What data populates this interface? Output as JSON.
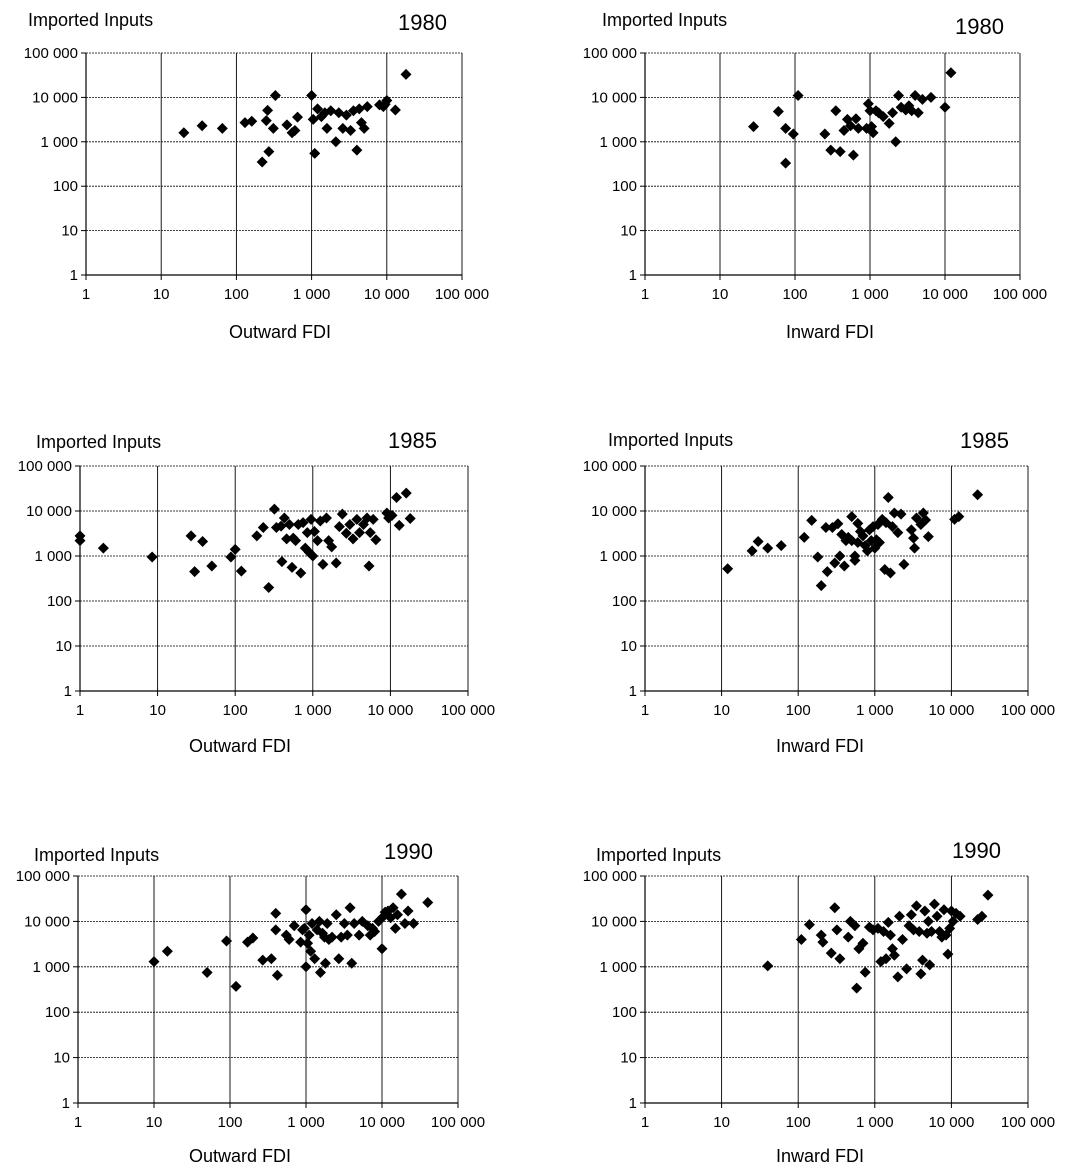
{
  "chart_data": [
    {
      "type": "scatter",
      "scale": "log-log",
      "year": "1980",
      "ylabel": "Imported Inputs",
      "xlabel": "Outward FDI",
      "xlim": [
        1,
        100000
      ],
      "ylim": [
        1,
        100000
      ],
      "xticks": [
        "1",
        "10",
        "100",
        "1 000",
        "10 000",
        "100 000"
      ],
      "yticks": [
        "1",
        "10",
        "100",
        "1 000",
        "10 000",
        "100 000"
      ],
      "grid": true,
      "marker": "diamond",
      "marker_color": "#000000",
      "points": [
        [
          20,
          1600
        ],
        [
          35,
          2300
        ],
        [
          65,
          2000
        ],
        [
          130,
          2700
        ],
        [
          160,
          2900
        ],
        [
          220,
          350
        ],
        [
          250,
          3000
        ],
        [
          260,
          5100
        ],
        [
          270,
          600
        ],
        [
          310,
          2000
        ],
        [
          330,
          11000
        ],
        [
          470,
          2400
        ],
        [
          550,
          1600
        ],
        [
          600,
          1800
        ],
        [
          650,
          3600
        ],
        [
          1000,
          11000
        ],
        [
          1050,
          3200
        ],
        [
          1100,
          550
        ],
        [
          1200,
          5500
        ],
        [
          1350,
          3700
        ],
        [
          1500,
          4500
        ],
        [
          1600,
          2000
        ],
        [
          1800,
          5000
        ],
        [
          2100,
          1000
        ],
        [
          2300,
          4500
        ],
        [
          2600,
          2000
        ],
        [
          2900,
          4000
        ],
        [
          3300,
          1800
        ],
        [
          3600,
          5000
        ],
        [
          4000,
          650
        ],
        [
          4300,
          5500
        ],
        [
          4600,
          2700
        ],
        [
          5000,
          2000
        ],
        [
          5500,
          6200
        ],
        [
          8000,
          6800
        ],
        [
          9000,
          6200
        ],
        [
          9500,
          7000
        ],
        [
          10000,
          8500
        ],
        [
          13000,
          5200
        ],
        [
          18000,
          33000
        ]
      ]
    },
    {
      "type": "scatter",
      "scale": "log-log",
      "year": "1980",
      "ylabel": "Imported Inputs",
      "xlabel": "Inward FDI",
      "xlim": [
        1,
        100000
      ],
      "ylim": [
        1,
        100000
      ],
      "xticks": [
        "1",
        "10",
        "100",
        "1 000",
        "10 000",
        "100 000"
      ],
      "yticks": [
        "1",
        "10",
        "100",
        "1 000",
        "10 000",
        "100 000"
      ],
      "grid": true,
      "marker": "diamond",
      "marker_color": "#000000",
      "points": [
        [
          28,
          2200
        ],
        [
          60,
          4800
        ],
        [
          75,
          2000
        ],
        [
          75,
          330
        ],
        [
          95,
          1500
        ],
        [
          110,
          11000
        ],
        [
          250,
          1500
        ],
        [
          300,
          650
        ],
        [
          350,
          5000
        ],
        [
          400,
          600
        ],
        [
          450,
          1800
        ],
        [
          500,
          3200
        ],
        [
          550,
          2300
        ],
        [
          600,
          500
        ],
        [
          650,
          3300
        ],
        [
          700,
          2000
        ],
        [
          900,
          2000
        ],
        [
          950,
          7200
        ],
        [
          1000,
          5000
        ],
        [
          1050,
          2200
        ],
        [
          1100,
          1600
        ],
        [
          1200,
          5000
        ],
        [
          1300,
          4500
        ],
        [
          1500,
          3700
        ],
        [
          1800,
          2600
        ],
        [
          2000,
          4500
        ],
        [
          2200,
          1000
        ],
        [
          2400,
          11000
        ],
        [
          2600,
          6000
        ],
        [
          3000,
          5200
        ],
        [
          3300,
          6500
        ],
        [
          3600,
          5000
        ],
        [
          4000,
          11000
        ],
        [
          4400,
          4500
        ],
        [
          5000,
          9000
        ],
        [
          6500,
          10000
        ],
        [
          10000,
          6000
        ],
        [
          12000,
          36000
        ]
      ]
    },
    {
      "type": "scatter",
      "scale": "log-log",
      "year": "1985",
      "ylabel": "Imported Inputs",
      "xlabel": "Outward FDI",
      "xlim": [
        1,
        100000
      ],
      "ylim": [
        1,
        100000
      ],
      "xticks": [
        "1",
        "10",
        "100",
        "1 000",
        "10 000",
        "100 000"
      ],
      "yticks": [
        "1",
        "10",
        "100",
        "1 000",
        "10 000",
        "100 000"
      ],
      "grid": true,
      "marker": "diamond",
      "marker_color": "#000000",
      "points": [
        [
          1,
          2800
        ],
        [
          1,
          2200
        ],
        [
          2,
          1500
        ],
        [
          8.5,
          950
        ],
        [
          27,
          2800
        ],
        [
          30,
          450
        ],
        [
          38,
          2100
        ],
        [
          50,
          600
        ],
        [
          88,
          950
        ],
        [
          100,
          1400
        ],
        [
          120,
          460
        ],
        [
          190,
          2800
        ],
        [
          230,
          4300
        ],
        [
          270,
          200
        ],
        [
          320,
          11000
        ],
        [
          340,
          4300
        ],
        [
          390,
          4600
        ],
        [
          400,
          750
        ],
        [
          430,
          7000
        ],
        [
          460,
          2400
        ],
        [
          500,
          5000
        ],
        [
          540,
          560
        ],
        [
          560,
          2500
        ],
        [
          600,
          2200
        ],
        [
          650,
          5000
        ],
        [
          700,
          420
        ],
        [
          750,
          5500
        ],
        [
          800,
          1500
        ],
        [
          850,
          3300
        ],
        [
          900,
          1200
        ],
        [
          950,
          6500
        ],
        [
          1000,
          1000
        ],
        [
          1050,
          3500
        ],
        [
          1150,
          2200
        ],
        [
          1250,
          6000
        ],
        [
          1350,
          650
        ],
        [
          1500,
          7000
        ],
        [
          1600,
          2200
        ],
        [
          1750,
          1600
        ],
        [
          2000,
          700
        ],
        [
          2200,
          4500
        ],
        [
          2400,
          8500
        ],
        [
          2700,
          3200
        ],
        [
          3000,
          5000
        ],
        [
          3300,
          2400
        ],
        [
          3700,
          6500
        ],
        [
          4000,
          3300
        ],
        [
          4500,
          5000
        ],
        [
          5000,
          7000
        ],
        [
          5300,
          600
        ],
        [
          5500,
          3300
        ],
        [
          6000,
          6500
        ],
        [
          6500,
          2300
        ],
        [
          9000,
          9000
        ],
        [
          9500,
          7000
        ],
        [
          10500,
          8000
        ],
        [
          12000,
          20000
        ],
        [
          13000,
          4800
        ],
        [
          16000,
          25000
        ],
        [
          18000,
          6800
        ]
      ]
    },
    {
      "type": "scatter",
      "scale": "log-log",
      "year": "1985",
      "ylabel": "Imported Inputs",
      "xlabel": "Inward FDI",
      "xlim": [
        1,
        100000
      ],
      "ylim": [
        1,
        100000
      ],
      "xticks": [
        "1",
        "10",
        "100",
        "1 000",
        "10 000",
        "100 000"
      ],
      "yticks": [
        "1",
        "10",
        "100",
        "1 000",
        "10 000",
        "100 000"
      ],
      "grid": true,
      "marker": "diamond",
      "marker_color": "#000000",
      "points": [
        [
          12,
          520
        ],
        [
          25,
          1300
        ],
        [
          30,
          2100
        ],
        [
          40,
          1500
        ],
        [
          60,
          1700
        ],
        [
          120,
          2600
        ],
        [
          150,
          6200
        ],
        [
          180,
          950
        ],
        [
          200,
          220
        ],
        [
          230,
          4300
        ],
        [
          240,
          450
        ],
        [
          280,
          4300
        ],
        [
          300,
          700
        ],
        [
          330,
          5200
        ],
        [
          350,
          1000
        ],
        [
          370,
          3000
        ],
        [
          400,
          600
        ],
        [
          420,
          2200
        ],
        [
          450,
          2600
        ],
        [
          500,
          7500
        ],
        [
          500,
          2200
        ],
        [
          550,
          1000
        ],
        [
          550,
          800
        ],
        [
          600,
          5300
        ],
        [
          600,
          2000
        ],
        [
          650,
          3500
        ],
        [
          700,
          2800
        ],
        [
          750,
          1700
        ],
        [
          800,
          1300
        ],
        [
          850,
          3800
        ],
        [
          900,
          2200
        ],
        [
          950,
          4500
        ],
        [
          1000,
          1500
        ],
        [
          1050,
          2300
        ],
        [
          1100,
          5000
        ],
        [
          1150,
          2000
        ],
        [
          1250,
          6500
        ],
        [
          1350,
          500
        ],
        [
          1400,
          5500
        ],
        [
          1500,
          20000
        ],
        [
          1600,
          420
        ],
        [
          1700,
          4500
        ],
        [
          1800,
          9000
        ],
        [
          2000,
          3300
        ],
        [
          2200,
          8500
        ],
        [
          2400,
          650
        ],
        [
          3000,
          3800
        ],
        [
          3200,
          2500
        ],
        [
          3300,
          1500
        ],
        [
          3500,
          7000
        ],
        [
          4000,
          5000
        ],
        [
          4300,
          9000
        ],
        [
          4600,
          6300
        ],
        [
          5000,
          2700
        ],
        [
          11000,
          6500
        ],
        [
          12500,
          7500
        ],
        [
          22000,
          23000
        ]
      ]
    },
    {
      "type": "scatter",
      "scale": "log-log",
      "year": "1990",
      "ylabel": "Imported Inputs",
      "xlabel": "Outward FDI",
      "xlim": [
        1,
        100000
      ],
      "ylim": [
        1,
        100000
      ],
      "xticks": [
        "1",
        "10",
        "100",
        "1 000",
        "10 000",
        "100 000"
      ],
      "yticks": [
        "1",
        "10",
        "100",
        "1 000",
        "10 000",
        "100 000"
      ],
      "grid": true,
      "marker": "diamond",
      "marker_color": "#000000",
      "points": [
        [
          10,
          1300
        ],
        [
          15,
          2200
        ],
        [
          50,
          750
        ],
        [
          90,
          3700
        ],
        [
          120,
          370
        ],
        [
          170,
          3500
        ],
        [
          200,
          4300
        ],
        [
          270,
          1400
        ],
        [
          350,
          1500
        ],
        [
          400,
          15000
        ],
        [
          400,
          6500
        ],
        [
          420,
          650
        ],
        [
          550,
          5000
        ],
        [
          600,
          4000
        ],
        [
          700,
          8000
        ],
        [
          850,
          3500
        ],
        [
          900,
          6500
        ],
        [
          950,
          7000
        ],
        [
          1000,
          18000
        ],
        [
          1000,
          1000
        ],
        [
          1050,
          3300
        ],
        [
          1100,
          5000
        ],
        [
          1150,
          2200
        ],
        [
          1200,
          9000
        ],
        [
          1300,
          1500
        ],
        [
          1400,
          6500
        ],
        [
          1500,
          10000
        ],
        [
          1550,
          750
        ],
        [
          1650,
          5500
        ],
        [
          1750,
          4500
        ],
        [
          1800,
          1200
        ],
        [
          1900,
          9000
        ],
        [
          2000,
          4000
        ],
        [
          2200,
          4500
        ],
        [
          2500,
          14000
        ],
        [
          2700,
          1500
        ],
        [
          2900,
          4500
        ],
        [
          3200,
          9000
        ],
        [
          3500,
          5000
        ],
        [
          3800,
          20000
        ],
        [
          4000,
          1200
        ],
        [
          4300,
          9000
        ],
        [
          5000,
          5000
        ],
        [
          5500,
          10000
        ],
        [
          6500,
          8000
        ],
        [
          7000,
          5000
        ],
        [
          7500,
          7000
        ],
        [
          8000,
          6000
        ],
        [
          9000,
          10000
        ],
        [
          10000,
          2500
        ],
        [
          10500,
          13000
        ],
        [
          11000,
          16000
        ],
        [
          12000,
          17000
        ],
        [
          13000,
          12000
        ],
        [
          14000,
          20000
        ],
        [
          15000,
          7000
        ],
        [
          16000,
          14000
        ],
        [
          18000,
          40000
        ],
        [
          20000,
          9000
        ],
        [
          22000,
          17000
        ],
        [
          26000,
          9000
        ],
        [
          40000,
          26000
        ]
      ]
    },
    {
      "type": "scatter",
      "scale": "log-log",
      "year": "1990",
      "ylabel": "Imported Inputs",
      "xlabel": "Inward FDI",
      "xlim": [
        1,
        100000
      ],
      "ylim": [
        1,
        100000
      ],
      "xticks": [
        "1",
        "10",
        "100",
        "1 000",
        "10 000",
        "100 000"
      ],
      "yticks": [
        "1",
        "10",
        "100",
        "1 000",
        "10 000",
        "100 000"
      ],
      "grid": true,
      "marker": "diamond",
      "marker_color": "#000000",
      "points": [
        [
          40,
          1050
        ],
        [
          110,
          4000
        ],
        [
          140,
          8500
        ],
        [
          200,
          5000
        ],
        [
          210,
          3500
        ],
        [
          270,
          2000
        ],
        [
          300,
          20000
        ],
        [
          320,
          6500
        ],
        [
          350,
          1500
        ],
        [
          450,
          4500
        ],
        [
          480,
          10000
        ],
        [
          550,
          8000
        ],
        [
          580,
          340
        ],
        [
          620,
          2500
        ],
        [
          700,
          3300
        ],
        [
          750,
          760
        ],
        [
          850,
          7500
        ],
        [
          950,
          6500
        ],
        [
          1100,
          7000
        ],
        [
          1200,
          1300
        ],
        [
          1300,
          6000
        ],
        [
          1400,
          1500
        ],
        [
          1500,
          9500
        ],
        [
          1600,
          5000
        ],
        [
          1700,
          2500
        ],
        [
          1800,
          1800
        ],
        [
          2000,
          600
        ],
        [
          2100,
          13000
        ],
        [
          2300,
          4000
        ],
        [
          2600,
          900
        ],
        [
          2800,
          8000
        ],
        [
          3000,
          14000
        ],
        [
          3200,
          6500
        ],
        [
          3500,
          22000
        ],
        [
          3800,
          6000
        ],
        [
          4000,
          700
        ],
        [
          4200,
          1400
        ],
        [
          4500,
          17000
        ],
        [
          4800,
          5500
        ],
        [
          5000,
          10000
        ],
        [
          5200,
          1100
        ],
        [
          5500,
          6000
        ],
        [
          6000,
          24000
        ],
        [
          6500,
          13000
        ],
        [
          7000,
          6000
        ],
        [
          7500,
          4500
        ],
        [
          8000,
          18000
        ],
        [
          8500,
          5000
        ],
        [
          9000,
          1900
        ],
        [
          9500,
          7000
        ],
        [
          10000,
          17000
        ],
        [
          10500,
          10000
        ],
        [
          11500,
          15000
        ],
        [
          13000,
          13000
        ],
        [
          22000,
          11000
        ],
        [
          25000,
          13000
        ],
        [
          30000,
          38000
        ]
      ]
    }
  ]
}
